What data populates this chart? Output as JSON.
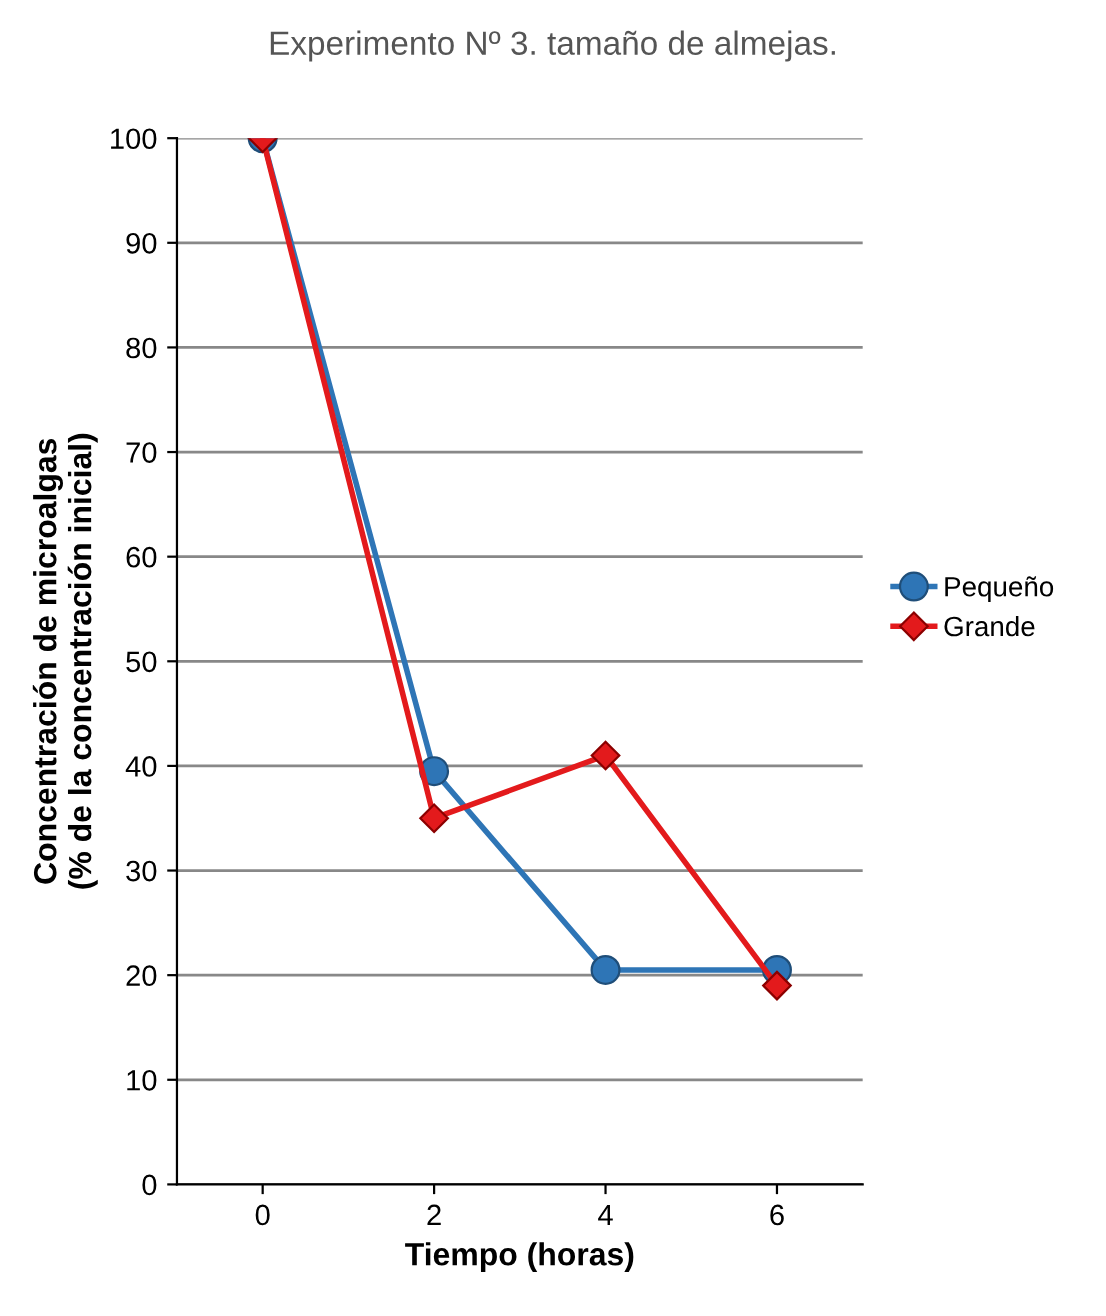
{
  "chart_data": {
    "type": "line",
    "title": "Experimento Nº 3. tamaño de almejas.",
    "xlabel": "Tiempo (horas)",
    "ylabel": "Concentración de microalgas\n(% de la concentración inicial)",
    "categories": [
      "0",
      "2",
      "4",
      "6"
    ],
    "series": [
      {
        "name": "Pequeño",
        "color": "#2e75b6",
        "marker": "circle",
        "values": [
          100,
          39.5,
          20.5,
          20.5
        ]
      },
      {
        "name": "Grande",
        "color": "#e31a1c",
        "marker": "diamond",
        "values": [
          100,
          35,
          41,
          19
        ]
      }
    ],
    "ylim": [
      0,
      100
    ],
    "yticks": [
      0,
      10,
      20,
      30,
      40,
      50,
      60,
      70,
      80,
      90,
      100
    ],
    "grid": "y",
    "legend": "right"
  }
}
